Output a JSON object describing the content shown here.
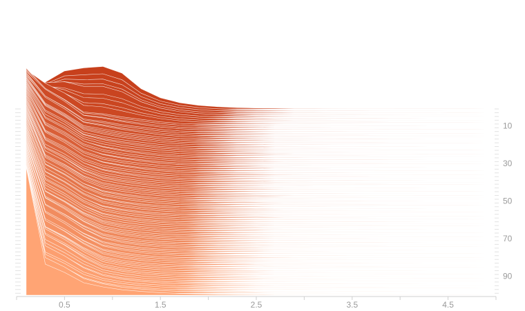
{
  "chart_data": {
    "type": "area",
    "subtype": "ridgeline",
    "title": "",
    "xlabel": "",
    "ylabel": "",
    "x": [
      0.1,
      0.3,
      0.5,
      0.7,
      0.9,
      1.1,
      1.3,
      1.5,
      1.7,
      1.9,
      2.1,
      2.3,
      2.5,
      2.7,
      2.9,
      3.1,
      3.3,
      3.5,
      3.7,
      3.9,
      4.1,
      4.3,
      4.5,
      4.7,
      4.9
    ],
    "xlim": [
      0,
      5
    ],
    "x_ticks": [
      "0.5",
      "1.5",
      "2.5",
      "3.5",
      "4.5"
    ],
    "y_ticks": [
      "10",
      "30",
      "50",
      "70",
      "90"
    ],
    "ylim": [
      0,
      100
    ],
    "series_count": 100,
    "ridge_base_series": 1,
    "ridge_base_y": 0,
    "ridge_step_y": 0.045,
    "palette": {
      "top": "#c7401c",
      "bottom": "#ffa474"
    },
    "profile_series": [
      1,
      10,
      30,
      50,
      70,
      90,
      100
    ],
    "profiles": [
      [
        0.6,
        0.6,
        0.85,
        0.92,
        0.95,
        0.8,
        0.45,
        0.25,
        0.14,
        0.08,
        0.05,
        0.03,
        0.02,
        0.015,
        0.01,
        0.01,
        0.006,
        0.005,
        0.004,
        0.003,
        0.002,
        0.002,
        0.001,
        0.001,
        0
      ],
      [
        1.35,
        0.92,
        0.65,
        0.34,
        0.3,
        0.22,
        0.16,
        0.1,
        0.06,
        0.04,
        0.03,
        0.02,
        0.014,
        0.01,
        0.008,
        0.006,
        0.005,
        0.004,
        0.003,
        0.002,
        0.002,
        0.001,
        0.001,
        0.001,
        0
      ],
      [
        1.75,
        0.92,
        0.7,
        0.42,
        0.28,
        0.2,
        0.14,
        0.09,
        0.06,
        0.04,
        0.03,
        0.02,
        0.015,
        0.01,
        0.008,
        0.006,
        0.005,
        0.004,
        0.003,
        0.002,
        0.002,
        0.001,
        0.001,
        0.001,
        0
      ],
      [
        2.05,
        0.95,
        0.72,
        0.44,
        0.26,
        0.18,
        0.12,
        0.08,
        0.05,
        0.035,
        0.025,
        0.018,
        0.013,
        0.01,
        0.008,
        0.006,
        0.005,
        0.004,
        0.003,
        0.002,
        0.002,
        0.001,
        0.001,
        0.001,
        0
      ],
      [
        2.3,
        0.98,
        0.74,
        0.46,
        0.26,
        0.17,
        0.11,
        0.07,
        0.05,
        0.035,
        0.025,
        0.018,
        0.013,
        0.01,
        0.008,
        0.006,
        0.005,
        0.004,
        0.003,
        0.002,
        0.002,
        0.001,
        0.001,
        0.001,
        0
      ],
      [
        2.6,
        1.0,
        0.76,
        0.48,
        0.25,
        0.16,
        0.1,
        0.065,
        0.045,
        0.032,
        0.023,
        0.017,
        0.012,
        0.009,
        0.007,
        0.005,
        0.004,
        0.003,
        0.003,
        0.002,
        0.002,
        0.001,
        0.001,
        0.001,
        0
      ],
      [
        3.0,
        0.75,
        0.55,
        0.3,
        0.2,
        0.13,
        0.09,
        0.06,
        0.04,
        0.03,
        0.02,
        0.015,
        0.011,
        0.008,
        0.006,
        0.005,
        0.004,
        0.003,
        0.002,
        0.002,
        0.001,
        0.001,
        0.001,
        0.001,
        0
      ]
    ]
  }
}
